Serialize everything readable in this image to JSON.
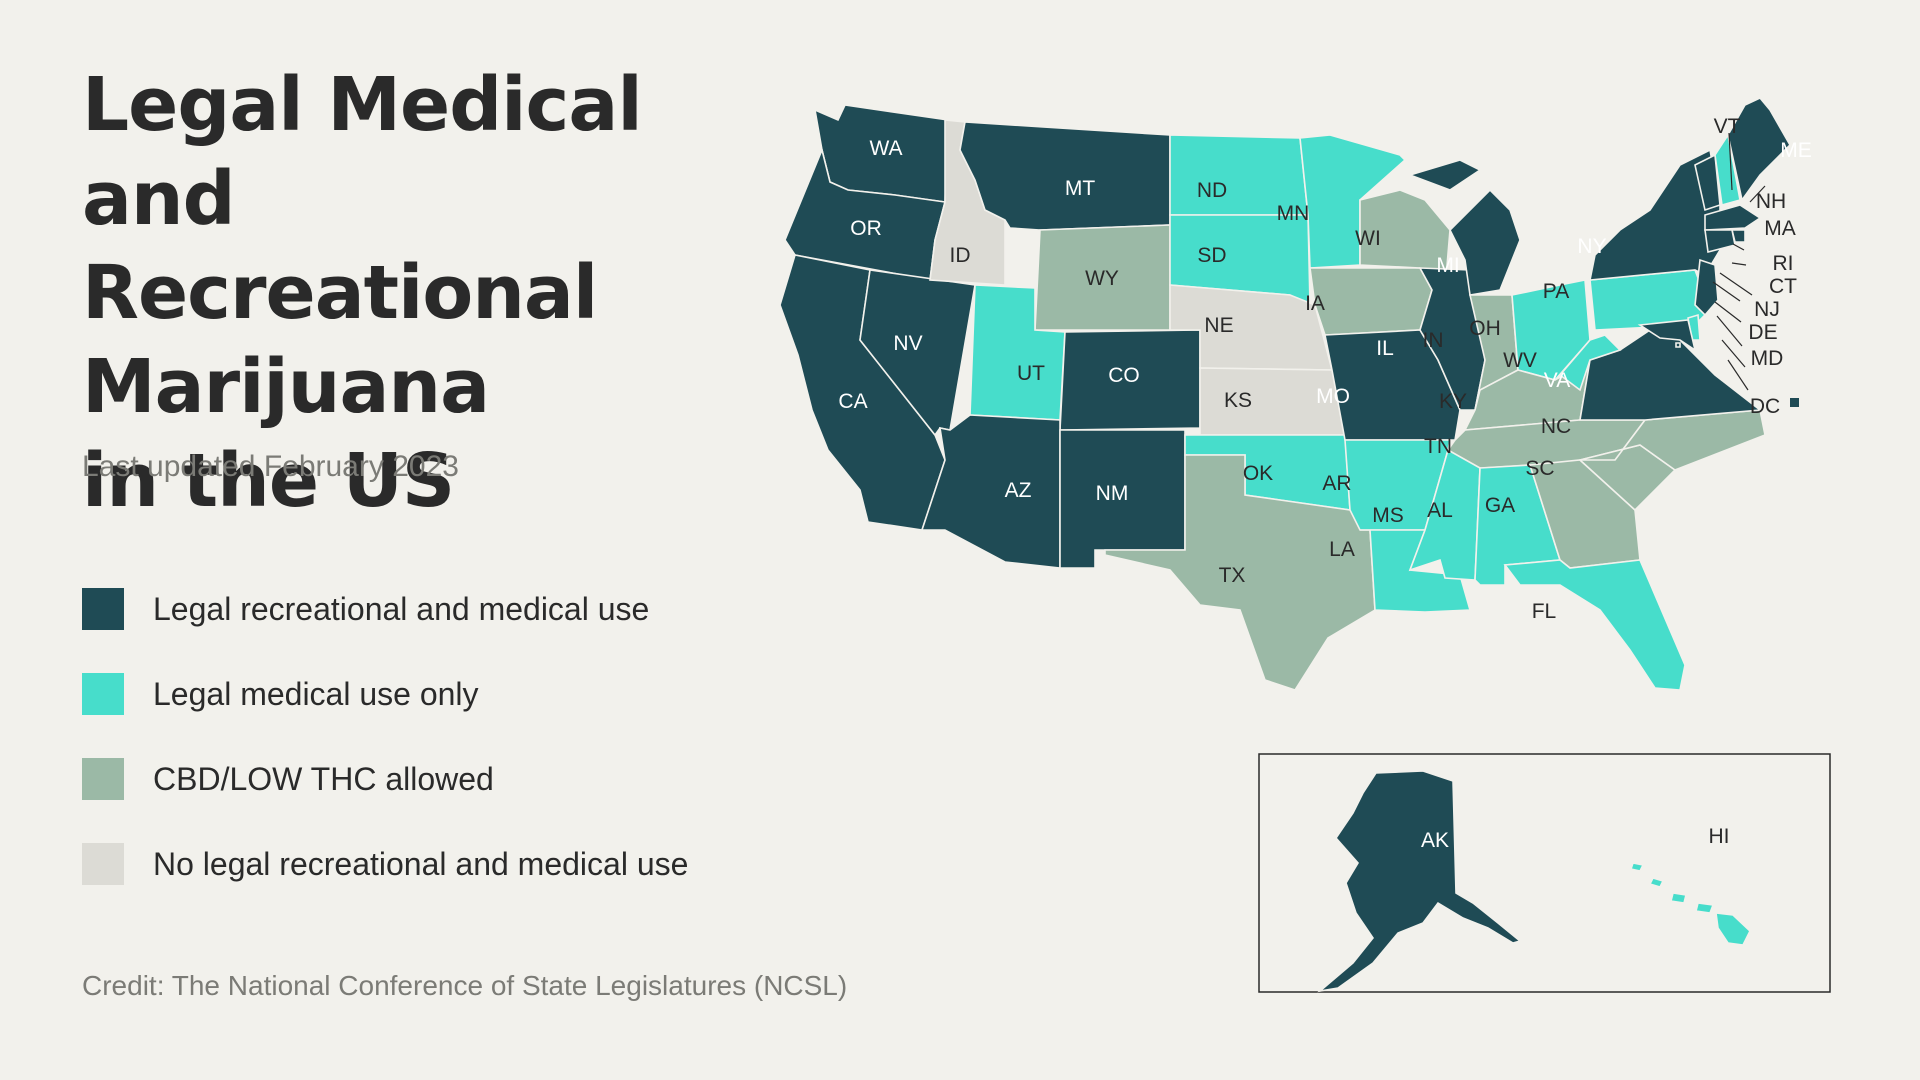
{
  "title_lines": [
    "Legal Medical",
    "and Recreational",
    "Marijuana",
    "in the US"
  ],
  "subtitle": "Last updated February 2023",
  "legend": [
    {
      "key": "rec",
      "label": "Legal recreational and medical use",
      "color": "#1f4b55"
    },
    {
      "key": "med",
      "label": "Legal medical use only",
      "color": "#47ddcb"
    },
    {
      "key": "cbd",
      "label": "CBD/LOW THC allowed",
      "color": "#9bb9a6"
    },
    {
      "key": "none",
      "label": "No legal recreational and medical use",
      "color": "#dcdbd5"
    }
  ],
  "credit": "Credit: The National Conference of State Legislatures (NCSL)",
  "state_status": {
    "WA": "rec",
    "OR": "rec",
    "CA": "rec",
    "NV": "rec",
    "ID": "none",
    "MT": "rec",
    "WY": "cbd",
    "UT": "med",
    "CO": "rec",
    "AZ": "rec",
    "NM": "rec",
    "ND": "med",
    "SD": "med",
    "NE": "none",
    "KS": "none",
    "OK": "med",
    "TX": "cbd",
    "MN": "med",
    "IA": "cbd",
    "MO": "rec",
    "AR": "med",
    "LA": "med",
    "WI": "cbd",
    "IL": "rec",
    "MI": "rec",
    "IN": "cbd",
    "OH": "med",
    "KY": "cbd",
    "TN": "cbd",
    "MS": "med",
    "AL": "med",
    "GA": "cbd",
    "FL": "med",
    "SC": "cbd",
    "NC": "cbd",
    "VA": "rec",
    "WV": "med",
    "PA": "med",
    "NY": "rec",
    "VT": "rec",
    "NH": "med",
    "ME": "rec",
    "MA": "rec",
    "RI": "rec",
    "CT": "rec",
    "NJ": "rec",
    "DE": "med",
    "MD": "rec",
    "DC": "rec",
    "AK": "rec",
    "HI": "med"
  }
}
